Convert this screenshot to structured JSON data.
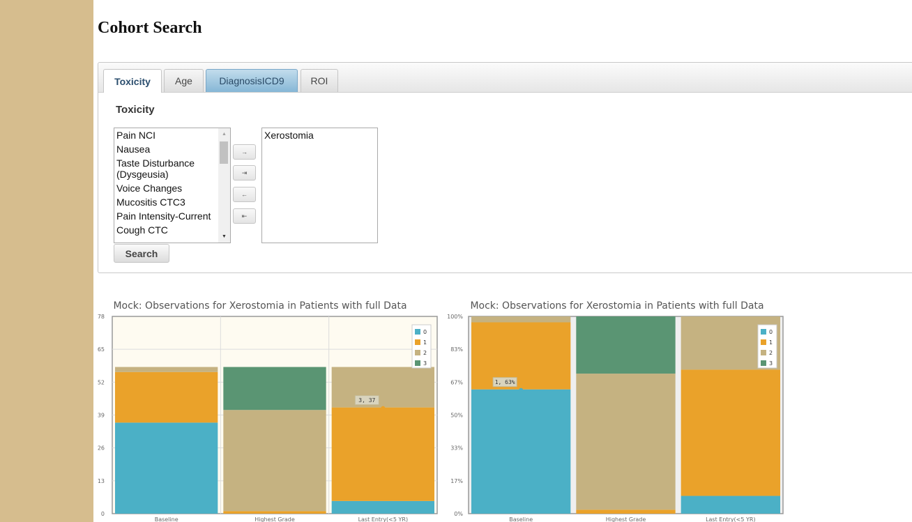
{
  "page": {
    "title": "Cohort Search"
  },
  "tabs": [
    {
      "label": "Toxicity",
      "state": "active"
    },
    {
      "label": "Age",
      "state": "normal"
    },
    {
      "label": "DiagnosisICD9",
      "state": "hover"
    },
    {
      "label": "ROI",
      "state": "normal"
    }
  ],
  "toxicity": {
    "heading": "Toxicity",
    "available_items": [
      "Pain NCI",
      "Nausea",
      "Taste Disturbance (Dysgeusia)",
      "Voice Changes",
      "Mucositis CTC3",
      "Pain Intensity-Current",
      "Cough CTC"
    ],
    "selected_items": [
      "Xerostomia"
    ],
    "move_buttons": [
      "→",
      "⇥",
      "←",
      "⇤"
    ],
    "search_label": "Search"
  },
  "colors": {
    "0": "#4bb0c6",
    "1": "#eaa22a",
    "2": "#c5b281",
    "3": "#5a9573",
    "sidebar": "#d6bd8e"
  },
  "chart_data": [
    {
      "type": "bar",
      "title": "Mock: Observations for Xerostomia in Patients with full Data",
      "stacked": true,
      "categories": [
        "Baseline",
        "Highest Grade",
        "Last Entry(<5 YR)"
      ],
      "series": [
        {
          "name": "0",
          "values": [
            36,
            0,
            5
          ]
        },
        {
          "name": "1",
          "values": [
            20,
            1,
            37
          ]
        },
        {
          "name": "2",
          "values": [
            2,
            40,
            16
          ]
        },
        {
          "name": "3",
          "values": [
            0,
            17,
            0
          ]
        }
      ],
      "yticks": [
        "0",
        "13",
        "26",
        "39",
        "52",
        "65",
        "78"
      ],
      "ylim": [
        0,
        78
      ],
      "tooltip": "3, 37",
      "legend": "top-right",
      "grid": true
    },
    {
      "type": "bar",
      "title": "Mock: Observations for Xerostomia in Patients with full Data",
      "stacked": true,
      "percent": true,
      "categories": [
        "Baseline",
        "Highest Grade",
        "Last Entry(<5 YR)"
      ],
      "series": [
        {
          "name": "0",
          "values": [
            63,
            0,
            9
          ]
        },
        {
          "name": "1",
          "values": [
            34,
            2,
            64
          ]
        },
        {
          "name": "2",
          "values": [
            3,
            69,
            27
          ]
        },
        {
          "name": "3",
          "values": [
            0,
            29,
            0
          ]
        }
      ],
      "yticks": [
        "0%",
        "17%",
        "33%",
        "50%",
        "67%",
        "83%",
        "100%"
      ],
      "ylim": [
        0,
        100
      ],
      "tooltip": "1, 63%",
      "legend": "top-right",
      "grid": false
    }
  ]
}
